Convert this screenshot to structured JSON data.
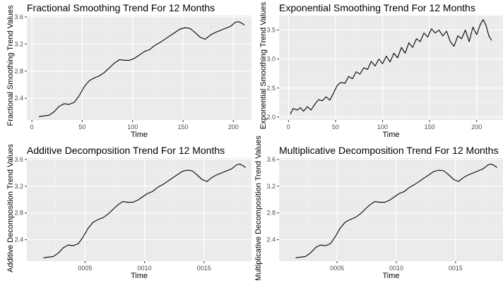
{
  "chart_data": [
    {
      "type": "line",
      "title": "Fractional Smoothing Trend For 12 Months",
      "xlabel": "Time",
      "ylabel": "Fractional Smoothing Trend Values",
      "xlim": [
        -5,
        218
      ],
      "ylim": [
        2.08,
        3.62
      ],
      "xticks": [
        0,
        50,
        100,
        150,
        200
      ],
      "xtick_labels": [
        "0",
        "50",
        "100",
        "150",
        "200"
      ],
      "yticks": [
        2.4,
        2.8,
        3.2,
        3.6
      ],
      "ytick_labels": [
        "2.4",
        "2.8",
        "3.2",
        "3.6"
      ],
      "grid": true,
      "series": [
        {
          "x": [
            7,
            12,
            17,
            22,
            27,
            32,
            37,
            42,
            47,
            52,
            57,
            62,
            67,
            72,
            77,
            82,
            87,
            92,
            97,
            102,
            107,
            112,
            117,
            122,
            127,
            132,
            137,
            142,
            147,
            152,
            157,
            162,
            167,
            172,
            177,
            182,
            187,
            192,
            197,
            202,
            205,
            208,
            211
          ],
          "y": [
            2.13,
            2.14,
            2.15,
            2.2,
            2.28,
            2.32,
            2.31,
            2.34,
            2.44,
            2.57,
            2.66,
            2.7,
            2.73,
            2.78,
            2.85,
            2.92,
            2.97,
            2.96,
            2.96,
            2.99,
            3.04,
            3.09,
            3.12,
            3.18,
            3.22,
            3.27,
            3.32,
            3.37,
            3.42,
            3.44,
            3.43,
            3.37,
            3.3,
            3.27,
            3.33,
            3.37,
            3.4,
            3.43,
            3.46,
            3.52,
            3.53,
            3.51,
            3.48
          ]
        }
      ]
    },
    {
      "type": "line",
      "title": "Exponential Smoothing Trend For 12 Months",
      "xlabel": "Time",
      "ylabel": "Exponential Smoothing Trend Values",
      "xlim": [
        -10,
        228
      ],
      "ylim": [
        1.95,
        3.75
      ],
      "xticks": [
        0,
        50,
        100,
        150,
        200
      ],
      "xtick_labels": [
        "0",
        "50",
        "100",
        "150",
        "200"
      ],
      "yticks": [
        2.0,
        2.5,
        3.0,
        3.5
      ],
      "ytick_labels": [
        "2.0",
        "2.5",
        "3.0",
        "3.5"
      ],
      "grid": true,
      "series": [
        {
          "x": [
            2,
            5,
            9,
            13,
            16,
            20,
            24,
            28,
            32,
            36,
            40,
            44,
            48,
            52,
            56,
            60,
            64,
            68,
            72,
            76,
            80,
            84,
            88,
            92,
            96,
            100,
            104,
            108,
            112,
            116,
            120,
            124,
            128,
            132,
            136,
            140,
            144,
            148,
            152,
            156,
            160,
            164,
            168,
            172,
            176,
            180,
            184,
            188,
            192,
            196,
            200,
            204,
            207,
            210,
            213,
            216
          ],
          "y": [
            2.05,
            2.15,
            2.12,
            2.16,
            2.1,
            2.18,
            2.12,
            2.22,
            2.3,
            2.28,
            2.35,
            2.29,
            2.42,
            2.55,
            2.6,
            2.58,
            2.7,
            2.66,
            2.78,
            2.74,
            2.85,
            2.82,
            2.96,
            2.88,
            3.0,
            2.92,
            3.05,
            2.95,
            3.1,
            3.02,
            3.2,
            3.1,
            3.28,
            3.2,
            3.35,
            3.3,
            3.45,
            3.38,
            3.52,
            3.45,
            3.5,
            3.4,
            3.48,
            3.3,
            3.22,
            3.4,
            3.35,
            3.5,
            3.3,
            3.55,
            3.42,
            3.6,
            3.68,
            3.58,
            3.4,
            3.32
          ]
        }
      ]
    },
    {
      "type": "line",
      "title": "Additive Decomposition Trend For 12 Months",
      "xlabel": "Time",
      "ylabel": "Additive Decomposition Trend Values",
      "xlim": [
        2000.1,
        2019.0
      ],
      "ylim": [
        2.08,
        3.62
      ],
      "xticks": [
        2005,
        2010,
        2015
      ],
      "xtick_labels": [
        "0005",
        "0010",
        "0015"
      ],
      "yticks": [
        2.4,
        2.8,
        3.2,
        3.6
      ],
      "ytick_labels": [
        "2.4",
        "2.8",
        "3.2",
        "3.6"
      ],
      "grid": true,
      "series": [
        {
          "x": [
            2001.5,
            2001.92,
            2002.33,
            2002.75,
            2003.17,
            2003.58,
            2004.0,
            2004.42,
            2004.83,
            2005.25,
            2005.67,
            2006.08,
            2006.5,
            2006.92,
            2007.33,
            2007.75,
            2008.17,
            2008.58,
            2009.0,
            2009.42,
            2009.83,
            2010.25,
            2010.67,
            2011.08,
            2011.5,
            2011.92,
            2012.33,
            2012.75,
            2013.17,
            2013.58,
            2014.0,
            2014.42,
            2014.83,
            2015.25,
            2015.67,
            2016.08,
            2016.5,
            2016.92,
            2017.33,
            2017.75,
            2018.0,
            2018.25,
            2018.5
          ],
          "y": [
            2.13,
            2.14,
            2.15,
            2.2,
            2.28,
            2.32,
            2.31,
            2.34,
            2.44,
            2.57,
            2.66,
            2.7,
            2.73,
            2.78,
            2.85,
            2.92,
            2.97,
            2.96,
            2.96,
            2.99,
            3.04,
            3.09,
            3.12,
            3.18,
            3.22,
            3.27,
            3.32,
            3.37,
            3.42,
            3.44,
            3.43,
            3.37,
            3.3,
            3.27,
            3.33,
            3.37,
            3.4,
            3.43,
            3.46,
            3.52,
            3.53,
            3.51,
            3.48
          ]
        }
      ]
    },
    {
      "type": "line",
      "title": "Multiplicative Decomposition Trend For 12 Months",
      "xlabel": "Time",
      "ylabel": "Multiplicative Decomposition Trend Values",
      "xlim": [
        2000.1,
        2019.0
      ],
      "ylim": [
        2.08,
        3.62
      ],
      "xticks": [
        2005,
        2010,
        2015
      ],
      "xtick_labels": [
        "0005",
        "0010",
        "0015"
      ],
      "yticks": [
        2.4,
        2.8,
        3.2,
        3.6
      ],
      "ytick_labels": [
        "2.4",
        "2.8",
        "3.2",
        "3.6"
      ],
      "grid": true,
      "series": [
        {
          "x": [
            2001.5,
            2001.92,
            2002.33,
            2002.75,
            2003.17,
            2003.58,
            2004.0,
            2004.42,
            2004.83,
            2005.25,
            2005.67,
            2006.08,
            2006.5,
            2006.92,
            2007.33,
            2007.75,
            2008.17,
            2008.58,
            2009.0,
            2009.42,
            2009.83,
            2010.25,
            2010.67,
            2011.08,
            2011.5,
            2011.92,
            2012.33,
            2012.75,
            2013.17,
            2013.58,
            2014.0,
            2014.42,
            2014.83,
            2015.25,
            2015.67,
            2016.08,
            2016.5,
            2016.92,
            2017.33,
            2017.75,
            2018.0,
            2018.25,
            2018.5
          ],
          "y": [
            2.13,
            2.14,
            2.15,
            2.2,
            2.28,
            2.32,
            2.31,
            2.34,
            2.44,
            2.57,
            2.66,
            2.7,
            2.73,
            2.78,
            2.85,
            2.92,
            2.97,
            2.96,
            2.96,
            2.99,
            3.04,
            3.09,
            3.12,
            3.18,
            3.22,
            3.27,
            3.32,
            3.37,
            3.42,
            3.44,
            3.43,
            3.37,
            3.3,
            3.27,
            3.33,
            3.37,
            3.4,
            3.43,
            3.46,
            3.52,
            3.53,
            3.51,
            3.48
          ]
        }
      ]
    }
  ]
}
